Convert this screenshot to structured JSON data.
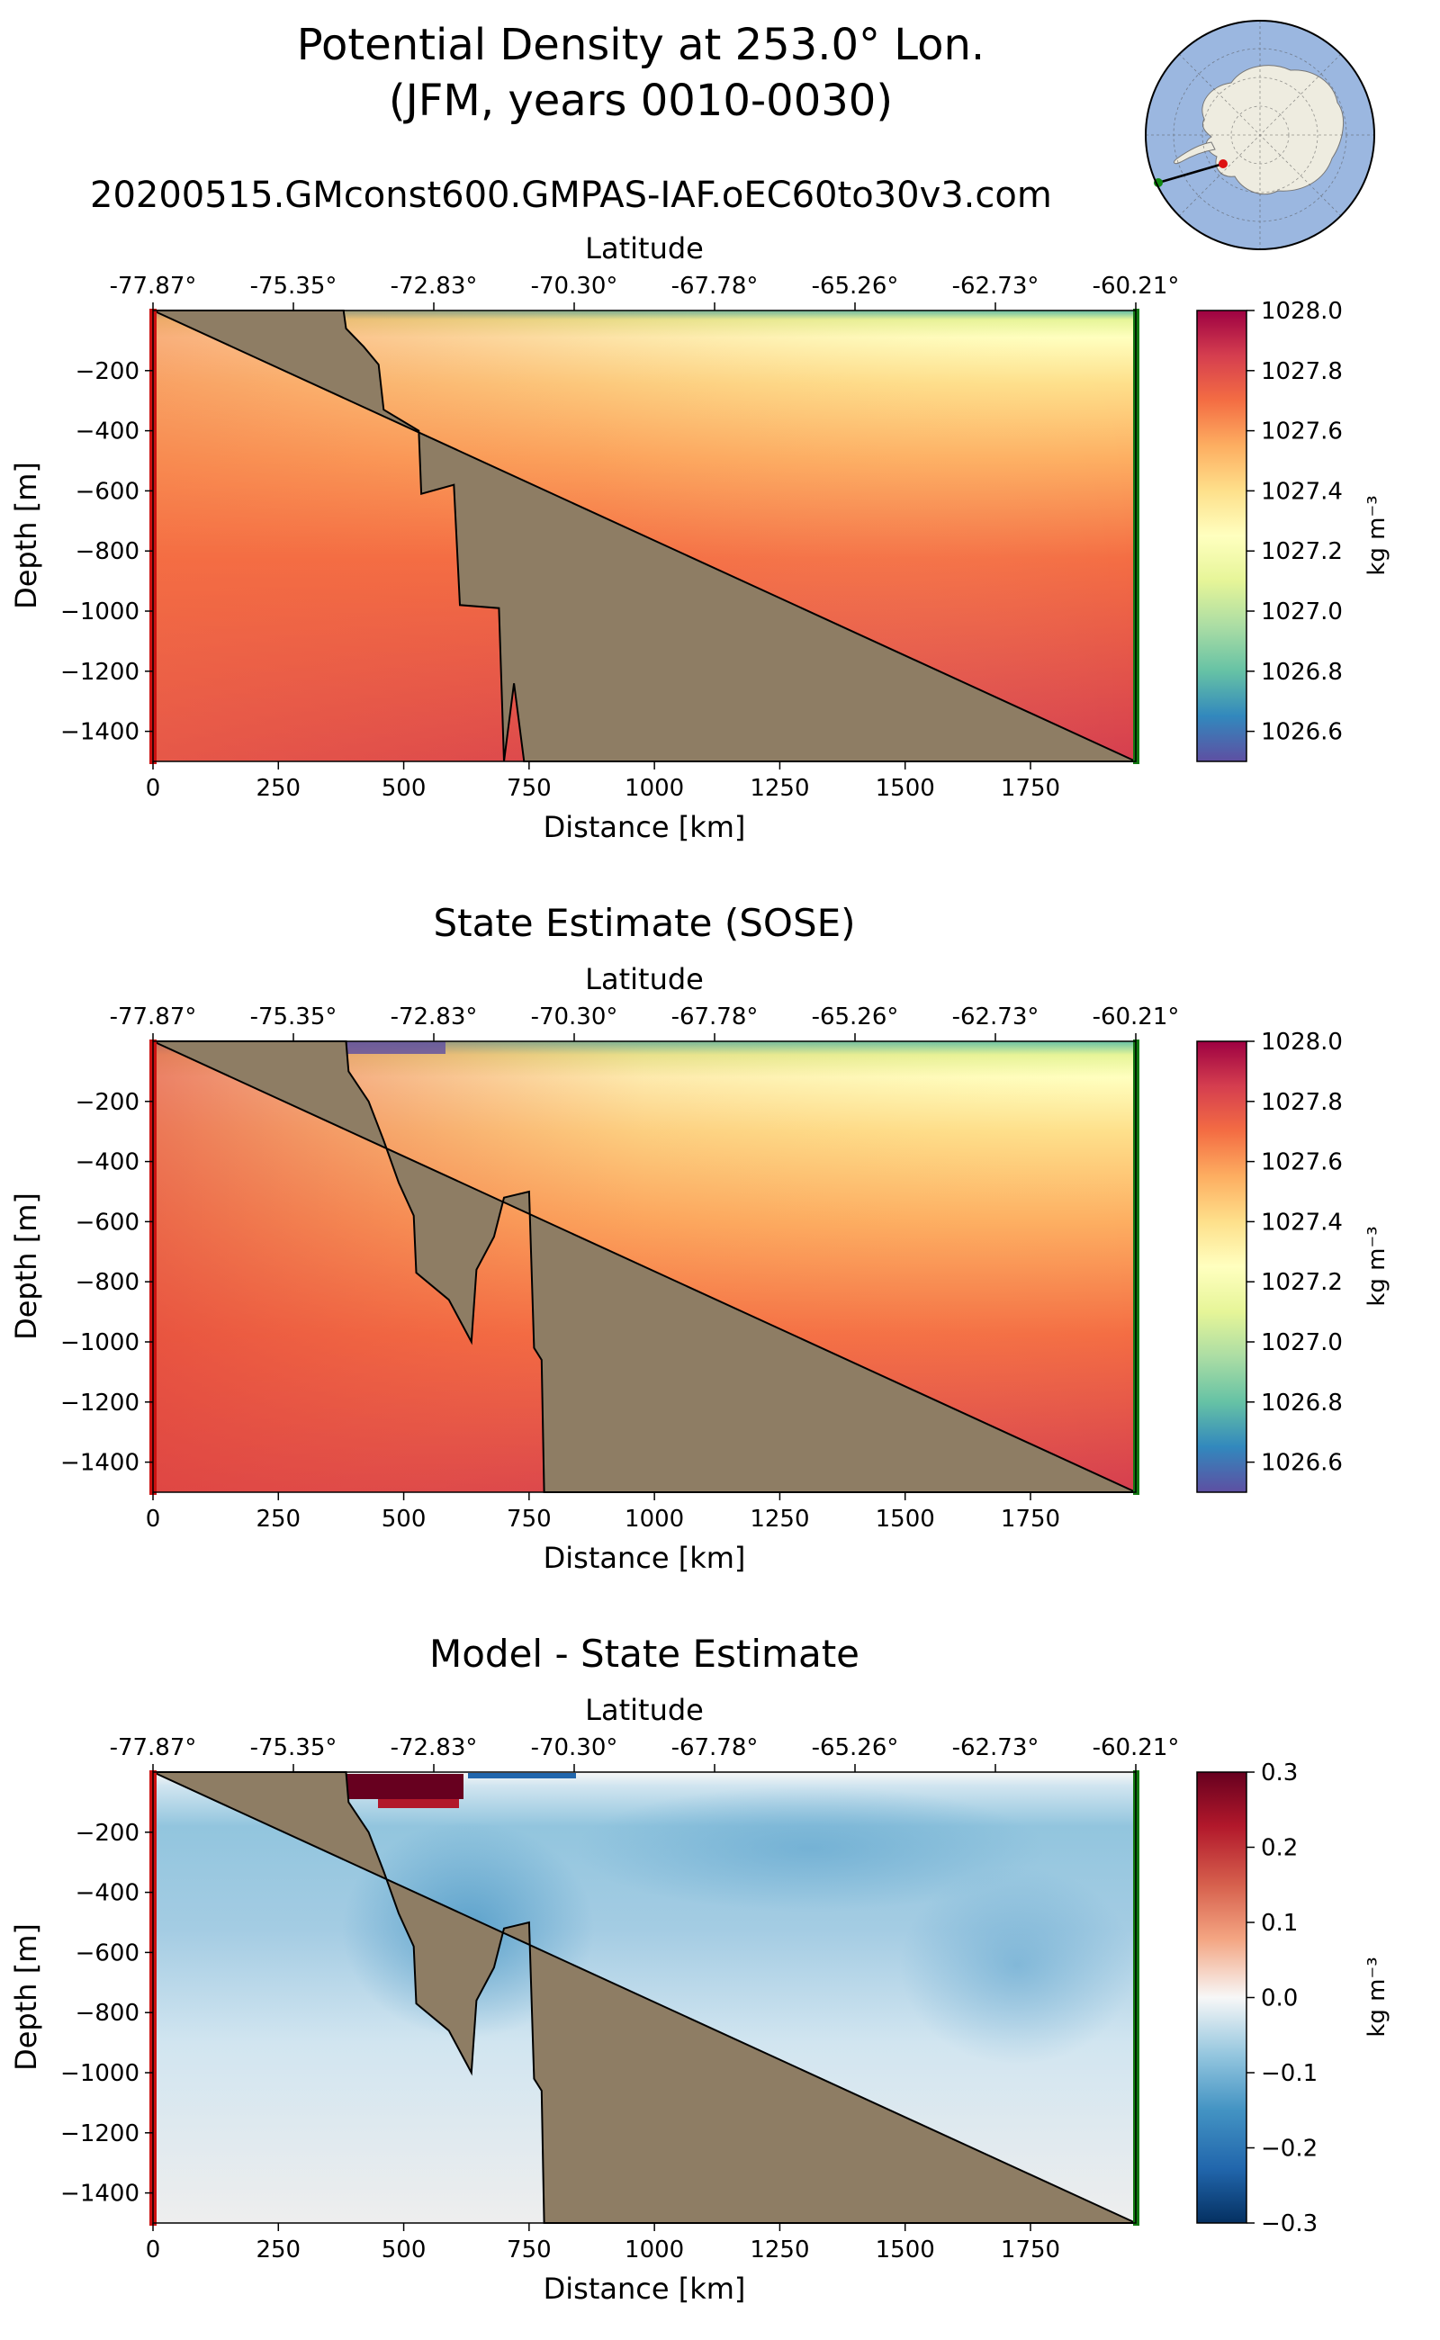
{
  "header": {
    "title_line1": "Potential Density at 253.0° Lon.",
    "title_line2": "(JFM, years 0010-0030)",
    "subtitle": "20200515.GMconst600.GMPAS-IAF.oEC60to30v3.com"
  },
  "colors": {
    "land": "#8e7d64",
    "start_marker": "#cc1111",
    "end_marker": "#117711",
    "map_ocean": "#9bb7e0",
    "map_land": "#eeece0"
  },
  "axes": {
    "top_label": "Latitude",
    "x_label": "Distance [km]",
    "y_label": "Depth [m]",
    "lat_ticks": [
      "-77.87°",
      "-75.35°",
      "-72.83°",
      "-70.30°",
      "-67.78°",
      "-65.26°",
      "-62.73°",
      "-60.21°"
    ],
    "x_ticks": [
      0,
      250,
      500,
      750,
      1000,
      1250,
      1500,
      1750
    ],
    "y_ticks": [
      -200,
      -400,
      -600,
      -800,
      -1000,
      -1200,
      -1400
    ],
    "xlim": [
      0,
      1960
    ],
    "ylim": [
      -1500,
      0
    ]
  },
  "chart_data": [
    {
      "type": "heatmap",
      "id": "model",
      "title": "",
      "colormap": "Spectral_r",
      "colorbar_label": "kg m⁻³",
      "vmin": 1026.5,
      "vmax": 1028.0,
      "cbar_ticks": [
        1028.0,
        1027.8,
        1027.6,
        1027.4,
        1027.2,
        1027.0,
        1026.8,
        1026.6
      ],
      "seabed_depths": [
        [
          0,
          0
        ],
        [
          380,
          0
        ],
        [
          385,
          -60
        ],
        [
          420,
          -120
        ],
        [
          450,
          -180
        ],
        [
          460,
          -330
        ],
        [
          530,
          -400
        ],
        [
          535,
          -610
        ],
        [
          600,
          -580
        ],
        [
          612,
          -980
        ],
        [
          690,
          -990
        ],
        [
          700,
          -1500
        ],
        [
          720,
          -1240
        ],
        [
          740,
          -1500
        ],
        [
          1960,
          -1500
        ]
      ]
    },
    {
      "type": "heatmap",
      "id": "sose",
      "title": "State Estimate (SOSE)",
      "colormap": "Spectral_r",
      "colorbar_label": "kg m⁻³",
      "vmin": 1026.5,
      "vmax": 1028.0,
      "cbar_ticks": [
        1028.0,
        1027.8,
        1027.6,
        1027.4,
        1027.2,
        1027.0,
        1026.8,
        1026.6
      ],
      "seabed_depths": [
        [
          0,
          0
        ],
        [
          385,
          0
        ],
        [
          390,
          -100
        ],
        [
          430,
          -200
        ],
        [
          460,
          -330
        ],
        [
          490,
          -470
        ],
        [
          520,
          -580
        ],
        [
          525,
          -770
        ],
        [
          590,
          -860
        ],
        [
          635,
          -1000
        ],
        [
          645,
          -760
        ],
        [
          680,
          -650
        ],
        [
          700,
          -520
        ],
        [
          750,
          -500
        ],
        [
          760,
          -1020
        ],
        [
          775,
          -1060
        ],
        [
          780,
          -1500
        ],
        [
          1960,
          -1500
        ]
      ]
    },
    {
      "type": "heatmap",
      "id": "diff",
      "title": "Model - State Estimate",
      "colormap": "RdBu_r",
      "colorbar_label": "kg m⁻³",
      "vmin": -0.3,
      "vmax": 0.3,
      "cbar_ticks": [
        0.3,
        0.2,
        0.1,
        0.0,
        -0.1,
        -0.2,
        -0.3
      ],
      "seabed_depths": [
        [
          0,
          0
        ],
        [
          385,
          0
        ],
        [
          390,
          -100
        ],
        [
          430,
          -200
        ],
        [
          460,
          -330
        ],
        [
          490,
          -470
        ],
        [
          520,
          -580
        ],
        [
          525,
          -770
        ],
        [
          590,
          -860
        ],
        [
          635,
          -1000
        ],
        [
          645,
          -760
        ],
        [
          680,
          -650
        ],
        [
          700,
          -520
        ],
        [
          750,
          -500
        ],
        [
          760,
          -1020
        ],
        [
          775,
          -1060
        ],
        [
          780,
          -1500
        ],
        [
          1960,
          -1500
        ]
      ]
    }
  ]
}
